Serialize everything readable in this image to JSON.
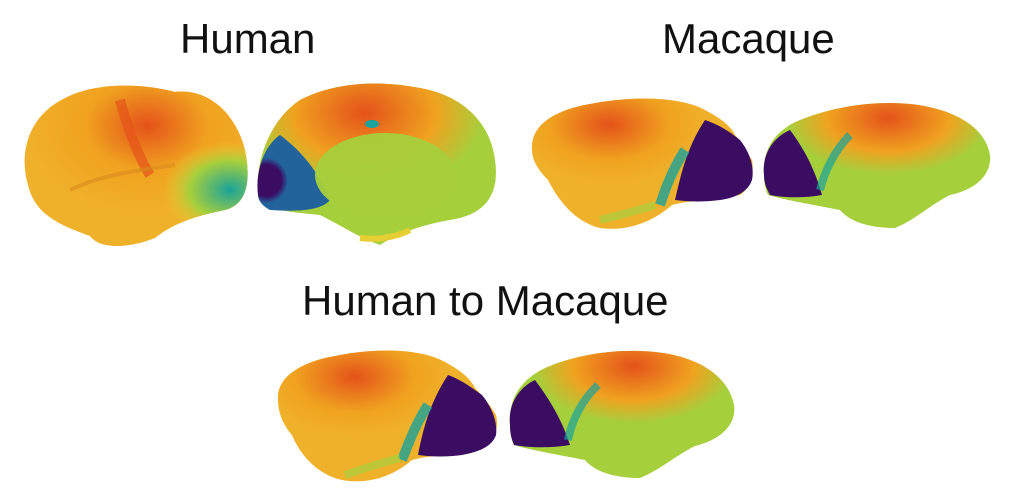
{
  "labels": {
    "human": "Human",
    "macaque": "Macaque",
    "human_to_macaque": "Human to Macaque"
  },
  "colormap": {
    "purple": "#3a0d63",
    "blue": "#22639b",
    "teal": "#1aa39a",
    "green": "#a6cf3c",
    "yellow": "#e6cf33",
    "orange": "#f0a21f",
    "red": "#e5521a"
  },
  "panels": [
    "human-lateral-brain",
    "human-medial-brain",
    "macaque-lateral-brain",
    "macaque-medial-brain",
    "human-to-macaque-lateral-brain",
    "human-to-macaque-medial-brain"
  ]
}
